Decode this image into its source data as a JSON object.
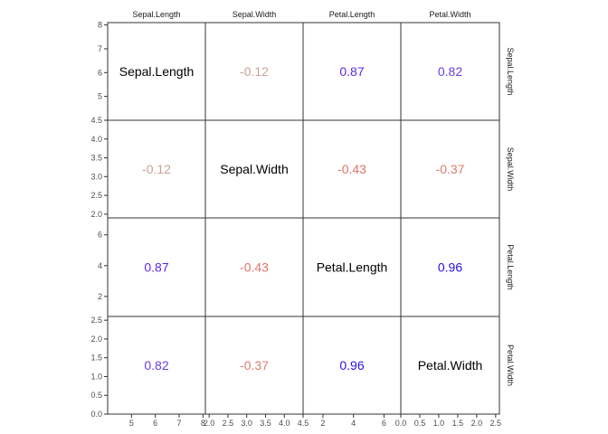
{
  "chart_data": {
    "type": "correlation-matrix",
    "variables": [
      "Sepal.Length",
      "Sepal.Width",
      "Petal.Length",
      "Petal.Width"
    ],
    "matrix": [
      [
        null,
        -0.12,
        0.87,
        0.82
      ],
      [
        -0.12,
        null,
        -0.43,
        -0.37
      ],
      [
        0.87,
        -0.43,
        null,
        0.96
      ],
      [
        0.82,
        -0.37,
        0.96,
        null
      ]
    ],
    "labels": [
      [
        "Sepal.Length",
        "-0.12",
        "0.87",
        "0.82"
      ],
      [
        "-0.12",
        "Sepal.Width",
        "-0.43",
        "-0.37"
      ],
      [
        "0.87",
        "-0.43",
        "Petal.Length",
        "0.96"
      ],
      [
        "0.82",
        "-0.37",
        "0.96",
        "Petal.Width"
      ]
    ],
    "colors": {
      "-0.12": "#c9a097",
      "-0.43": "#e07566",
      "-0.37": "#dd7c6e",
      "0.87": "#5a2ae0",
      "0.82": "#6a3ee0",
      "0.96": "#2a10e8"
    },
    "axes": [
      {
        "name": "Sepal.Length",
        "range": [
          4.0,
          8.1
        ],
        "ticks": [
          5,
          6,
          7,
          8
        ],
        "tick_labels": [
          "5",
          "6",
          "7",
          "8"
        ]
      },
      {
        "name": "Sepal.Width",
        "range": [
          1.9,
          4.5
        ],
        "ticks": [
          2.0,
          2.5,
          3.0,
          3.5,
          4.0,
          4.5
        ],
        "tick_labels": [
          "2.0",
          "2.5",
          "3.0",
          "3.5",
          "4.0",
          "4.5"
        ]
      },
      {
        "name": "Petal.Length",
        "range": [
          0.7,
          7.1
        ],
        "ticks": [
          2,
          4,
          6
        ],
        "tick_labels": [
          "2",
          "4",
          "6"
        ]
      },
      {
        "name": "Petal.Width",
        "range": [
          0.0,
          2.6
        ],
        "ticks": [
          0.0,
          0.5,
          1.0,
          1.5,
          2.0,
          2.5
        ],
        "tick_labels": [
          "0.0",
          "0.5",
          "1.0",
          "1.5",
          "2.0",
          "2.5"
        ]
      }
    ],
    "grid": false,
    "legend": "none"
  }
}
